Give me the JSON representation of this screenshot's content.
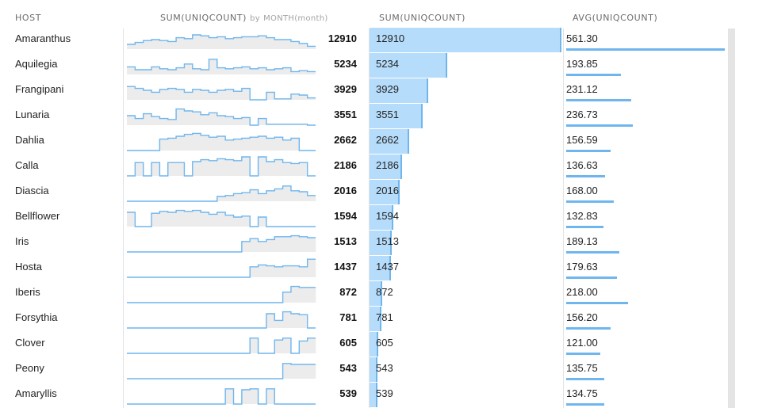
{
  "columns": {
    "host": "HOST",
    "spark_main": "SUM(UNIQCOUNT)",
    "spark_by": "by",
    "spark_month": "MONTH",
    "spark_month_paren": "(month)",
    "sum": "SUM(UNIQCOUNT)",
    "avg": "AVG(UNIQCOUNT)"
  },
  "colors": {
    "bar_fill": "#b6dcfb",
    "bar_edge": "#6fb6ee",
    "spark_fill": "#ececec",
    "spark_line": "#6fb6ee"
  },
  "chart_data": {
    "type": "table",
    "sum_max": 12910,
    "avg_max": 561.3,
    "rows": [
      {
        "host": "Amaranthus",
        "sum": 12910,
        "sum_label": "12910",
        "avg": 561.3,
        "avg_label": "561.30",
        "spark": [
          0.25,
          0.35,
          0.45,
          0.5,
          0.45,
          0.4,
          0.6,
          0.55,
          0.75,
          0.7,
          0.6,
          0.65,
          0.55,
          0.6,
          0.65,
          0.65,
          0.7,
          0.6,
          0.5,
          0.5,
          0.4,
          0.3,
          0.15
        ]
      },
      {
        "host": "Aquilegia",
        "sum": 5234,
        "sum_label": "5234",
        "avg": 193.85,
        "avg_label": "193.85",
        "spark": [
          0.4,
          0.25,
          0.25,
          0.4,
          0.3,
          0.25,
          0.35,
          0.55,
          0.3,
          0.25,
          0.8,
          0.35,
          0.3,
          0.35,
          0.4,
          0.3,
          0.35,
          0.25,
          0.3,
          0.35,
          0.15,
          0.2,
          0.15
        ]
      },
      {
        "host": "Frangipani",
        "sum": 3929,
        "sum_label": "3929",
        "avg": 231.12,
        "avg_label": "231.12",
        "spark": [
          0.7,
          0.6,
          0.5,
          0.4,
          0.55,
          0.6,
          0.55,
          0.4,
          0.55,
          0.5,
          0.4,
          0.5,
          0.55,
          0.45,
          0.6,
          0,
          0,
          0.4,
          0.05,
          0.05,
          0.3,
          0.25,
          0.1
        ]
      },
      {
        "host": "Lunaria",
        "sum": 3551,
        "sum_label": "3551",
        "avg": 236.73,
        "avg_label": "236.73",
        "spark": [
          0.5,
          0.35,
          0.6,
          0.45,
          0.35,
          0.3,
          0.85,
          0.75,
          0.7,
          0.55,
          0.65,
          0.5,
          0.45,
          0.35,
          0.4,
          0,
          0.35,
          0.05,
          0.05,
          0.05,
          0.05,
          0.05,
          0
        ]
      },
      {
        "host": "Dahlia",
        "sum": 2662,
        "sum_label": "2662",
        "avg": 156.59,
        "avg_label": "156.59",
        "spark": [
          0,
          0,
          0,
          0,
          0.6,
          0.65,
          0.75,
          0.85,
          0.9,
          0.8,
          0.7,
          0.75,
          0.55,
          0.6,
          0.65,
          0.7,
          0.75,
          0.65,
          0.7,
          0.55,
          0.65,
          0,
          0
        ]
      },
      {
        "host": "Calla",
        "sum": 2186,
        "sum_label": "2186",
        "avg": 136.63,
        "avg_label": "136.63",
        "spark": [
          0,
          0.7,
          0,
          0.7,
          0,
          0.7,
          0.7,
          0,
          0.75,
          0.85,
          0.8,
          0.9,
          0.85,
          0.8,
          1,
          0,
          1,
          0.75,
          0.85,
          0.7,
          0.65,
          0.7,
          0
        ]
      },
      {
        "host": "Diascia",
        "sum": 2016,
        "sum_label": "2016",
        "avg": 168.0,
        "avg_label": "168.00",
        "spark": [
          0,
          0,
          0,
          0,
          0,
          0,
          0,
          0,
          0,
          0,
          0,
          0.25,
          0.3,
          0.4,
          0.45,
          0.6,
          0.4,
          0.55,
          0.65,
          0.8,
          0.55,
          0.5,
          0.3
        ]
      },
      {
        "host": "Bellflower",
        "sum": 1594,
        "sum_label": "1594",
        "avg": 132.83,
        "avg_label": "132.83",
        "spark": [
          0.75,
          0,
          0,
          0.7,
          0.8,
          0.75,
          0.85,
          0.8,
          0.85,
          0.75,
          0.65,
          0.75,
          0.6,
          0.5,
          0.55,
          0,
          0.5,
          0,
          0,
          0,
          0,
          0,
          0
        ]
      },
      {
        "host": "Iris",
        "sum": 1513,
        "sum_label": "1513",
        "avg": 189.13,
        "avg_label": "189.13",
        "spark": [
          0,
          0,
          0,
          0,
          0,
          0,
          0,
          0,
          0,
          0,
          0,
          0,
          0,
          0,
          0.55,
          0.7,
          0.55,
          0.65,
          0.8,
          0.8,
          0.85,
          0.8,
          0.75
        ]
      },
      {
        "host": "Hosta",
        "sum": 1437,
        "sum_label": "1437",
        "avg": 179.63,
        "avg_label": "179.63",
        "spark": [
          0,
          0,
          0,
          0,
          0,
          0,
          0,
          0,
          0,
          0,
          0,
          0,
          0,
          0,
          0,
          0.55,
          0.65,
          0.6,
          0.55,
          0.6,
          0.6,
          0.55,
          0.95
        ]
      },
      {
        "host": "Iberis",
        "sum": 872,
        "sum_label": "872",
        "avg": 218.0,
        "avg_label": "218.00",
        "spark": [
          0,
          0,
          0,
          0,
          0,
          0,
          0,
          0,
          0,
          0,
          0,
          0,
          0,
          0,
          0,
          0,
          0,
          0,
          0,
          0.55,
          0.85,
          0.8,
          0.8
        ]
      },
      {
        "host": "Forsythia",
        "sum": 781,
        "sum_label": "781",
        "avg": 156.2,
        "avg_label": "156.20",
        "spark": [
          0,
          0,
          0,
          0,
          0,
          0,
          0,
          0,
          0,
          0,
          0,
          0,
          0,
          0,
          0,
          0,
          0,
          0.75,
          0.4,
          0.85,
          0.75,
          0.7,
          0
        ]
      },
      {
        "host": "Clover",
        "sum": 605,
        "sum_label": "605",
        "avg": 121.0,
        "avg_label": "121.00",
        "spark": [
          0,
          0,
          0,
          0,
          0,
          0,
          0,
          0,
          0,
          0,
          0,
          0,
          0,
          0,
          0,
          0.8,
          0,
          0,
          0.7,
          0.8,
          0,
          0.65,
          0.8
        ]
      },
      {
        "host": "Peony",
        "sum": 543,
        "sum_label": "543",
        "avg": 135.75,
        "avg_label": "135.75",
        "spark": [
          0,
          0,
          0,
          0,
          0,
          0,
          0,
          0,
          0,
          0,
          0,
          0,
          0,
          0,
          0,
          0,
          0,
          0,
          0,
          0.8,
          0.75,
          0.75,
          0.75
        ]
      },
      {
        "host": "Amaryllis",
        "sum": 539,
        "sum_label": "539",
        "avg": 134.75,
        "avg_label": "134.75",
        "spark": [
          0,
          0,
          0,
          0,
          0,
          0,
          0,
          0,
          0,
          0,
          0,
          0,
          0.8,
          0,
          0.75,
          0.8,
          0,
          0.8,
          0,
          0,
          0,
          0,
          0
        ]
      }
    ]
  }
}
